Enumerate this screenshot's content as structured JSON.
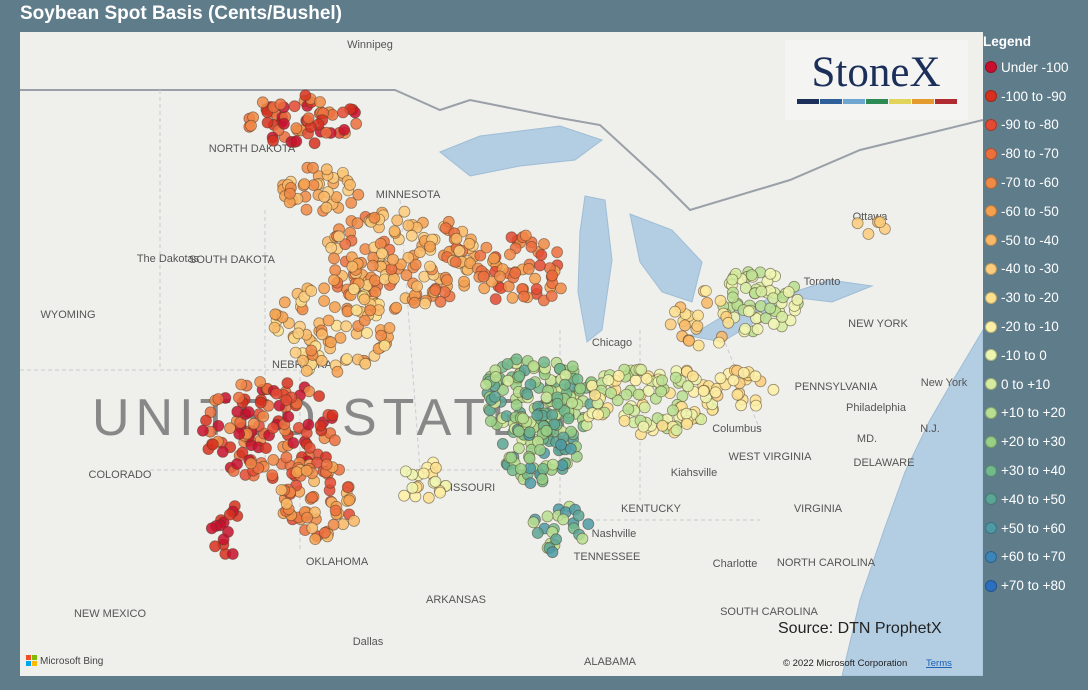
{
  "header": {
    "title": "Soybean Spot Basis (Cents/Bushel)"
  },
  "logo": "StoneX",
  "legend": {
    "title": "Legend",
    "items": [
      {
        "label": "Under -100",
        "color": "#c8102e"
      },
      {
        "label": "-100 to -90",
        "color": "#d7301f"
      },
      {
        "label": "-90 to -80",
        "color": "#e34a33"
      },
      {
        "label": "-80 to -70",
        "color": "#ec6f3e"
      },
      {
        "label": "-70 to -60",
        "color": "#f08a47"
      },
      {
        "label": "-60 to -50",
        "color": "#f5a04f"
      },
      {
        "label": "-50 to -40",
        "color": "#f9b866"
      },
      {
        "label": "-40 to -30",
        "color": "#fbcc7c"
      },
      {
        "label": "-30 to -20",
        "color": "#fde08f"
      },
      {
        "label": "-20 to -10",
        "color": "#fdf0a6"
      },
      {
        "label": "-10 to 0",
        "color": "#eef5b0"
      },
      {
        "label": "0 to +10",
        "color": "#d5eca0"
      },
      {
        "label": "+10 to +20",
        "color": "#b8df91"
      },
      {
        "label": "+20 to +30",
        "color": "#98cf86"
      },
      {
        "label": "+30 to +40",
        "color": "#72b98c"
      },
      {
        "label": "+40 to +50",
        "color": "#5aa595"
      },
      {
        "label": "+50 to +60",
        "color": "#4d9aa6"
      },
      {
        "label": "+60 to +70",
        "color": "#3d85b8"
      },
      {
        "label": "+70 to +80",
        "color": "#2c6fbf"
      }
    ]
  },
  "map": {
    "labels": [
      "Winnipeg",
      "NORTH DAKOTA",
      "MINNESOTA",
      "The Dakotas",
      "SOUTH DAKOTA",
      "WYOMING",
      "NEBRASKA",
      "UNITED STATES",
      "COLORADO",
      "MISSOURI",
      "OKLAHOMA",
      "NEW MEXICO",
      "ARKANSAS",
      "Dallas",
      "ALABAMA",
      "TENNESSEE",
      "Nashville",
      "KENTUCKY",
      "Kiahsville",
      "WEST VIRGINIA",
      "VIRGINIA",
      "NORTH CAROLINA",
      "SOUTH CAROLINA",
      "Charlotte",
      "Columbus",
      "Chicago",
      "Toronto",
      "Ottawa",
      "NEW YORK",
      "PENNSYLVANIA",
      "Philadelphia",
      "New York",
      "MD.",
      "N.J.",
      "DELAWARE"
    ],
    "source": "Source: DTN ProphetX",
    "attribution": "Microsoft Bing",
    "copyright": "© 2022 Microsoft Corporation",
    "terms": "Terms"
  }
}
